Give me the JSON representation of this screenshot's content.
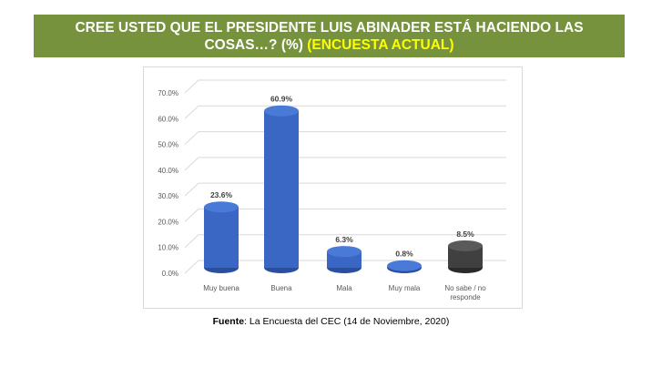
{
  "header": {
    "title_main": "CREE USTED QUE EL PRESIDENTE LUIS ABINADER ESTÁ HACIENDO LAS",
    "title_line2": "COSAS…? (%)",
    "title_highlight": "(ENCUESTA ACTUAL)"
  },
  "source": {
    "label": "Fuente",
    "text": ": La Encuesta del CEC (14 de Noviembre, 2020)"
  },
  "chart_data": {
    "type": "bar",
    "style": "3d-cylinder",
    "categories": [
      "Muy buena",
      "Buena",
      "Mala",
      "Muy mala",
      "No sabe / no responde"
    ],
    "values": [
      23.6,
      60.9,
      6.3,
      0.8,
      8.5
    ],
    "data_labels": [
      "23.6%",
      "60.9%",
      "6.3%",
      "0.8%",
      "8.5%"
    ],
    "colors": [
      "#3a66c4",
      "#3a66c4",
      "#3a66c4",
      "#3a66c4",
      "#404040"
    ],
    "yticks": [
      "0.0%",
      "10.0%",
      "20.0%",
      "30.0%",
      "40.0%",
      "50.0%",
      "60.0%",
      "70.0%"
    ],
    "ylim": [
      0,
      70
    ],
    "grid": true,
    "legend": "none"
  }
}
